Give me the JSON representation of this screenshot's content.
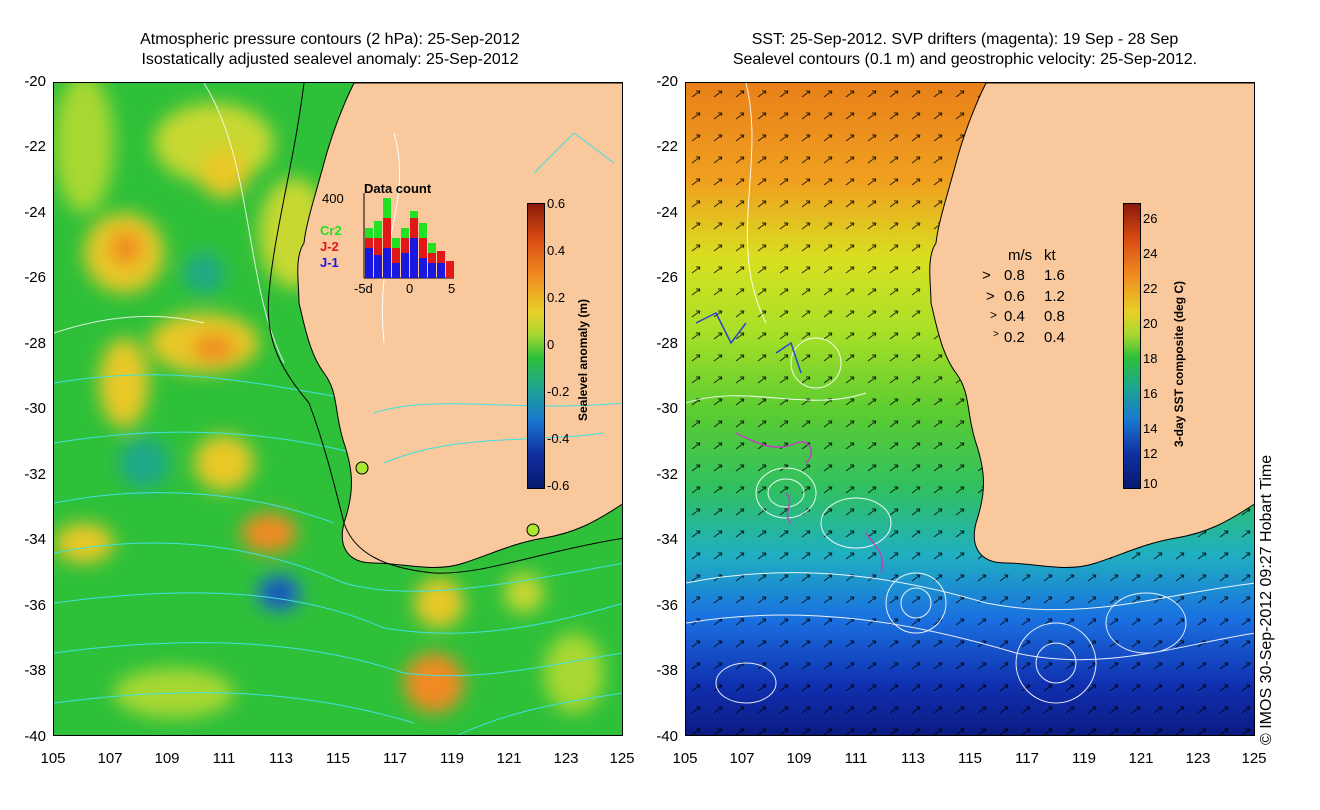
{
  "left": {
    "title_line1": "Atmospheric pressure contours (2 hPa): 25-Sep-2012",
    "title_line2": "Isostatically adjusted sealevel anomaly: 25-Sep-2012",
    "colorbar_label": "Sealevel anomaly (m)",
    "colorbar_ticks": [
      "0.6",
      "0.4",
      "0.2",
      "0",
      "-0.2",
      "-0.4",
      "-0.6"
    ],
    "data_count": {
      "title": "Data count",
      "max_label": "400",
      "series": [
        {
          "name": "Cr2",
          "color": "#22e022"
        },
        {
          "name": "J-2",
          "color": "#e01818"
        },
        {
          "name": "J-1",
          "color": "#1818e0"
        }
      ],
      "x_ticks": [
        "-5d",
        "0",
        "5"
      ]
    }
  },
  "right": {
    "title_line1": "SST: 25-Sep-2012. SVP drifters (magenta): 19 Sep - 28 Sep",
    "title_line2": "Sealevel contours (0.1 m) and geostrophic velocity: 25-Sep-2012.",
    "colorbar_label": "3-day SST composite (deg C)",
    "colorbar_ticks": [
      "26",
      "24",
      "22",
      "20",
      "18",
      "16",
      "14",
      "12",
      "10"
    ],
    "velocity_legend": {
      "header_ms": "m/s",
      "header_kt": "kt",
      "rows": [
        {
          "ms": "0.8",
          "kt": "1.6"
        },
        {
          "ms": "0.6",
          "kt": "1.2"
        },
        {
          "ms": "0.4",
          "kt": "0.8"
        },
        {
          "ms": "0.2",
          "kt": "0.4"
        }
      ]
    }
  },
  "y_axis_labels": [
    "-20",
    "-22",
    "-24",
    "-26",
    "-28",
    "-30",
    "-32",
    "-34",
    "-36",
    "-38",
    "-40"
  ],
  "x_axis_labels": [
    "105",
    "107",
    "109",
    "111",
    "113",
    "115",
    "117",
    "119",
    "121",
    "123",
    "125"
  ],
  "copyright": "© IMOS 30-Sep-2012 09:27 Hobart Time",
  "colors": {
    "land": "#f9c89c",
    "ssl_high": "#c83a12",
    "ssl_low": "#102890",
    "sst_warm": "#f08c1a",
    "sst_cold": "#0a2a9a",
    "contour_cyan": "#40e0e0",
    "contour_white": "#ffffff",
    "drifter": "#c040c0"
  }
}
